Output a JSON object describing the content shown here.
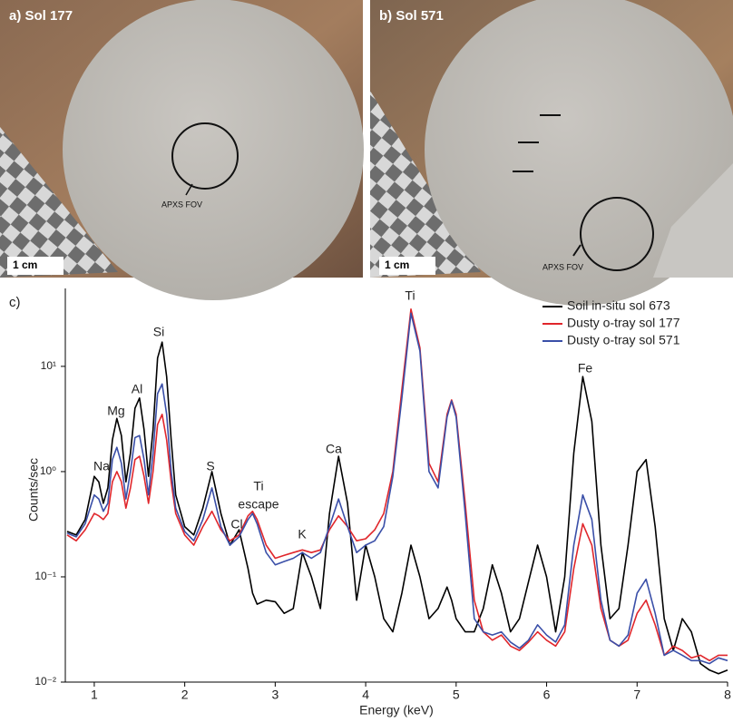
{
  "figure": {
    "panels": [
      {
        "label": "a) Sol 177",
        "scale": "1 cm",
        "fov": "APXS FOV"
      },
      {
        "label": "b) Sol 571",
        "scale": "1 cm",
        "fov": "APXS FOV"
      }
    ],
    "chart_label": "c)"
  },
  "chart_data": {
    "type": "line",
    "x_label": "Energy (keV)",
    "y_label": "Counts/sec",
    "log_y": true,
    "legend": "upper right",
    "annotations": [
      "Na",
      "Mg",
      "Al",
      "Si",
      "S",
      "Ti",
      "escape",
      "Cl",
      "K",
      "Ca",
      "Ti",
      "Fe"
    ],
    "xlim": [
      0.68,
      8
    ],
    "xticks": [
      1,
      2,
      3,
      4,
      5,
      6,
      7,
      8
    ],
    "ylim": [
      0.01,
      55
    ],
    "yticks": [
      {
        "value": 0.01,
        "label": "10⁻²"
      },
      {
        "value": 0.1,
        "label": "10⁻¹"
      },
      {
        "value": 1,
        "label": "10⁰"
      },
      {
        "value": 10,
        "label": "10¹"
      }
    ],
    "x": [
      0.7,
      0.8,
      0.9,
      1.0,
      1.05,
      1.1,
      1.15,
      1.2,
      1.25,
      1.3,
      1.35,
      1.4,
      1.45,
      1.5,
      1.55,
      1.6,
      1.65,
      1.7,
      1.75,
      1.8,
      1.85,
      1.9,
      2.0,
      2.1,
      2.2,
      2.3,
      2.4,
      2.5,
      2.6,
      2.7,
      2.75,
      2.8,
      2.9,
      3.0,
      3.1,
      3.2,
      3.3,
      3.4,
      3.5,
      3.6,
      3.7,
      3.8,
      3.9,
      4.0,
      4.1,
      4.2,
      4.3,
      4.4,
      4.5,
      4.6,
      4.7,
      4.8,
      4.9,
      4.95,
      5.0,
      5.1,
      5.2,
      5.3,
      5.4,
      5.5,
      5.6,
      5.7,
      5.8,
      5.9,
      6.0,
      6.1,
      6.2,
      6.3,
      6.4,
      6.5,
      6.6,
      6.7,
      6.8,
      6.9,
      7.0,
      7.1,
      7.2,
      7.3,
      7.4,
      7.5,
      7.6,
      7.7,
      7.8,
      7.9,
      8.0
    ],
    "series": [
      {
        "name": "Soil in-situ sol 673",
        "color": "#000000",
        "values": [
          0.27,
          0.25,
          0.35,
          0.9,
          0.8,
          0.5,
          0.7,
          2.0,
          3.2,
          2.2,
          0.8,
          1.5,
          4.0,
          5.0,
          2.5,
          0.9,
          2.5,
          12,
          17,
          8,
          2,
          0.6,
          0.3,
          0.25,
          0.45,
          1.0,
          0.4,
          0.2,
          0.28,
          0.12,
          0.07,
          0.055,
          0.06,
          0.058,
          0.045,
          0.05,
          0.17,
          0.1,
          0.05,
          0.4,
          1.4,
          0.5,
          0.06,
          0.2,
          0.1,
          0.04,
          0.03,
          0.07,
          0.2,
          0.1,
          0.04,
          0.05,
          0.08,
          0.06,
          0.04,
          0.03,
          0.03,
          0.05,
          0.13,
          0.07,
          0.03,
          0.04,
          0.09,
          0.2,
          0.1,
          0.03,
          0.1,
          1.5,
          8,
          3,
          0.2,
          0.04,
          0.05,
          0.2,
          1.0,
          1.3,
          0.3,
          0.04,
          0.02,
          0.04,
          0.03,
          0.015,
          0.013,
          0.012,
          0.013
        ]
      },
      {
        "name": "Dusty o-tray sol 177",
        "color": "#e0262b",
        "values": [
          0.25,
          0.22,
          0.28,
          0.4,
          0.38,
          0.35,
          0.4,
          0.8,
          1.0,
          0.8,
          0.45,
          0.7,
          1.3,
          1.4,
          0.9,
          0.5,
          1.0,
          2.8,
          3.5,
          2.0,
          0.8,
          0.4,
          0.25,
          0.2,
          0.3,
          0.42,
          0.28,
          0.22,
          0.25,
          0.38,
          0.42,
          0.35,
          0.2,
          0.15,
          0.16,
          0.17,
          0.18,
          0.17,
          0.18,
          0.28,
          0.38,
          0.3,
          0.22,
          0.23,
          0.28,
          0.4,
          1.0,
          6,
          35,
          15,
          1.2,
          0.8,
          3.5,
          4.8,
          3.5,
          0.5,
          0.06,
          0.03,
          0.025,
          0.028,
          0.022,
          0.02,
          0.024,
          0.03,
          0.025,
          0.022,
          0.03,
          0.12,
          0.32,
          0.2,
          0.05,
          0.025,
          0.022,
          0.025,
          0.045,
          0.06,
          0.035,
          0.018,
          0.022,
          0.02,
          0.017,
          0.018,
          0.016,
          0.018,
          0.018
        ]
      },
      {
        "name": "Dusty o-tray sol 571",
        "color": "#3a4fa8",
        "values": [
          0.26,
          0.24,
          0.32,
          0.6,
          0.55,
          0.42,
          0.5,
          1.3,
          1.7,
          1.2,
          0.55,
          1.0,
          2.1,
          2.2,
          1.3,
          0.6,
          1.5,
          5.5,
          6.8,
          3.5,
          1.0,
          0.45,
          0.27,
          0.22,
          0.35,
          0.7,
          0.3,
          0.2,
          0.24,
          0.35,
          0.4,
          0.32,
          0.17,
          0.13,
          0.14,
          0.15,
          0.17,
          0.15,
          0.17,
          0.3,
          0.55,
          0.3,
          0.17,
          0.2,
          0.22,
          0.3,
          0.9,
          5,
          32,
          14,
          1.0,
          0.7,
          3.3,
          4.7,
          3.3,
          0.4,
          0.04,
          0.03,
          0.028,
          0.03,
          0.024,
          0.021,
          0.025,
          0.035,
          0.028,
          0.024,
          0.035,
          0.2,
          0.6,
          0.35,
          0.06,
          0.025,
          0.022,
          0.028,
          0.07,
          0.095,
          0.045,
          0.018,
          0.02,
          0.018,
          0.016,
          0.016,
          0.015,
          0.017,
          0.016
        ]
      }
    ]
  }
}
